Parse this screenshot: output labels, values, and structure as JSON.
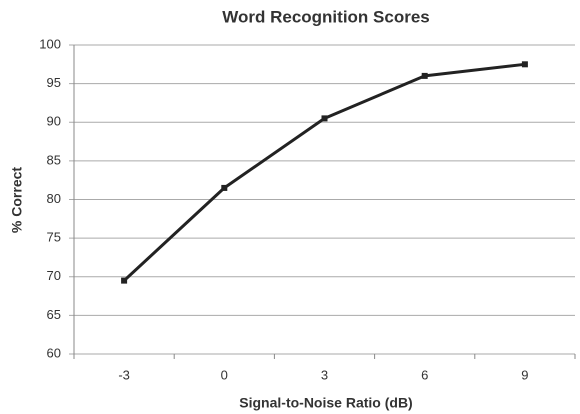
{
  "chart_data": {
    "type": "line",
    "title": "Word Recognition Scores",
    "x_label": "Signal-to-Noise Ratio (dB)",
    "y_label": "% Correct",
    "categories": [
      "-3",
      "0",
      "3",
      "6",
      "9"
    ],
    "series": [
      {
        "name": "Word Recognition Scores",
        "color": "#222222",
        "values": [
          69.5,
          81.5,
          90.5,
          96,
          97.5
        ]
      }
    ],
    "ylim": [
      60,
      100
    ],
    "yticks": [
      60,
      65,
      70,
      75,
      80,
      85,
      90,
      95,
      100
    ],
    "grid": true
  }
}
